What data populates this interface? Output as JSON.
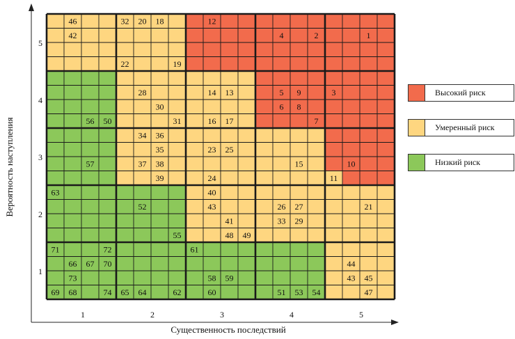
{
  "chart_data": {
    "type": "heatmap",
    "xlabel": "Существенность последствий",
    "ylabel": "Вероятность наступления",
    "x_categories": [
      "1",
      "2",
      "3",
      "4",
      "5"
    ],
    "y_categories": [
      "1",
      "2",
      "3",
      "4",
      "5"
    ],
    "legend": [
      {
        "key": "high",
        "label": "Высокий риск",
        "color": "#f26b4c"
      },
      {
        "key": "moderate",
        "label": "Умеренный риск",
        "color": "#fed680"
      },
      {
        "key": "low",
        "label": "Низкий риск",
        "color": "#8cc85a"
      }
    ],
    "zones": [
      {
        "x": 1,
        "y": 5,
        "level": "moderate"
      },
      {
        "x": 2,
        "y": 5,
        "level": "moderate"
      },
      {
        "x": 3,
        "y": 5,
        "level": "high"
      },
      {
        "x": 4,
        "y": 5,
        "level": "high"
      },
      {
        "x": 5,
        "y": 5,
        "level": "high"
      },
      {
        "x": 1,
        "y": 4,
        "level": "low"
      },
      {
        "x": 2,
        "y": 4,
        "level": "moderate"
      },
      {
        "x": 3,
        "y": 4,
        "level": "moderate"
      },
      {
        "x": 4,
        "y": 4,
        "level": "high"
      },
      {
        "x": 5,
        "y": 4,
        "level": "high"
      },
      {
        "x": 1,
        "y": 3,
        "level": "low"
      },
      {
        "x": 2,
        "y": 3,
        "level": "moderate"
      },
      {
        "x": 3,
        "y": 3,
        "level": "moderate"
      },
      {
        "x": 4,
        "y": 3,
        "level": "moderate"
      },
      {
        "x": 5,
        "y": 3,
        "level": "high"
      },
      {
        "x": 1,
        "y": 2,
        "level": "low"
      },
      {
        "x": 2,
        "y": 2,
        "level": "low"
      },
      {
        "x": 3,
        "y": 2,
        "level": "moderate"
      },
      {
        "x": 4,
        "y": 2,
        "level": "moderate"
      },
      {
        "x": 5,
        "y": 2,
        "level": "moderate"
      },
      {
        "x": 1,
        "y": 1,
        "level": "low"
      },
      {
        "x": 2,
        "y": 1,
        "level": "low"
      },
      {
        "x": 3,
        "y": 1,
        "level": "low"
      },
      {
        "x": 4,
        "y": 1,
        "level": "low"
      },
      {
        "x": 5,
        "y": 1,
        "level": "moderate"
      }
    ],
    "risk_overrides": [
      {
        "x": 5,
        "y": 3,
        "sub_col": 1,
        "sub_row": 4,
        "level": "moderate"
      }
    ],
    "risks": [
      {
        "id": "46",
        "x": 1,
        "y": 5,
        "sub_col": 2,
        "sub_row": 1
      },
      {
        "id": "42",
        "x": 1,
        "y": 5,
        "sub_col": 2,
        "sub_row": 2
      },
      {
        "id": "32",
        "x": 2,
        "y": 5,
        "sub_col": 1,
        "sub_row": 1
      },
      {
        "id": "20",
        "x": 2,
        "y": 5,
        "sub_col": 2,
        "sub_row": 1
      },
      {
        "id": "18",
        "x": 2,
        "y": 5,
        "sub_col": 3,
        "sub_row": 1
      },
      {
        "id": "22",
        "x": 2,
        "y": 5,
        "sub_col": 1,
        "sub_row": 4
      },
      {
        "id": "19",
        "x": 2,
        "y": 5,
        "sub_col": 4,
        "sub_row": 4
      },
      {
        "id": "12",
        "x": 3,
        "y": 5,
        "sub_col": 2,
        "sub_row": 1
      },
      {
        "id": "4",
        "x": 4,
        "y": 5,
        "sub_col": 2,
        "sub_row": 2
      },
      {
        "id": "2",
        "x": 4,
        "y": 5,
        "sub_col": 4,
        "sub_row": 2
      },
      {
        "id": "1",
        "x": 5,
        "y": 5,
        "sub_col": 3,
        "sub_row": 2
      },
      {
        "id": "56",
        "x": 1,
        "y": 4,
        "sub_col": 3,
        "sub_row": 4
      },
      {
        "id": "50",
        "x": 1,
        "y": 4,
        "sub_col": 4,
        "sub_row": 4
      },
      {
        "id": "28",
        "x": 2,
        "y": 4,
        "sub_col": 2,
        "sub_row": 2
      },
      {
        "id": "30",
        "x": 2,
        "y": 4,
        "sub_col": 3,
        "sub_row": 3
      },
      {
        "id": "31",
        "x": 2,
        "y": 4,
        "sub_col": 4,
        "sub_row": 4
      },
      {
        "id": "14",
        "x": 3,
        "y": 4,
        "sub_col": 2,
        "sub_row": 2
      },
      {
        "id": "13",
        "x": 3,
        "y": 4,
        "sub_col": 3,
        "sub_row": 2
      },
      {
        "id": "16",
        "x": 3,
        "y": 4,
        "sub_col": 2,
        "sub_row": 4
      },
      {
        "id": "17",
        "x": 3,
        "y": 4,
        "sub_col": 3,
        "sub_row": 4
      },
      {
        "id": "5",
        "x": 4,
        "y": 4,
        "sub_col": 2,
        "sub_row": 2
      },
      {
        "id": "9",
        "x": 4,
        "y": 4,
        "sub_col": 3,
        "sub_row": 2
      },
      {
        "id": "6",
        "x": 4,
        "y": 4,
        "sub_col": 2,
        "sub_row": 3
      },
      {
        "id": "8",
        "x": 4,
        "y": 4,
        "sub_col": 3,
        "sub_row": 3
      },
      {
        "id": "7",
        "x": 4,
        "y": 4,
        "sub_col": 4,
        "sub_row": 4
      },
      {
        "id": "3",
        "x": 5,
        "y": 4,
        "sub_col": 1,
        "sub_row": 2
      },
      {
        "id": "57",
        "x": 1,
        "y": 3,
        "sub_col": 3,
        "sub_row": 3
      },
      {
        "id": "34",
        "x": 2,
        "y": 3,
        "sub_col": 2,
        "sub_row": 1
      },
      {
        "id": "36",
        "x": 2,
        "y": 3,
        "sub_col": 3,
        "sub_row": 1
      },
      {
        "id": "35",
        "x": 2,
        "y": 3,
        "sub_col": 3,
        "sub_row": 2
      },
      {
        "id": "37",
        "x": 2,
        "y": 3,
        "sub_col": 2,
        "sub_row": 3
      },
      {
        "id": "38",
        "x": 2,
        "y": 3,
        "sub_col": 3,
        "sub_row": 3
      },
      {
        "id": "39",
        "x": 2,
        "y": 3,
        "sub_col": 3,
        "sub_row": 4
      },
      {
        "id": "23",
        "x": 3,
        "y": 3,
        "sub_col": 2,
        "sub_row": 2
      },
      {
        "id": "25",
        "x": 3,
        "y": 3,
        "sub_col": 3,
        "sub_row": 2
      },
      {
        "id": "24",
        "x": 3,
        "y": 3,
        "sub_col": 2,
        "sub_row": 4
      },
      {
        "id": "15",
        "x": 4,
        "y": 3,
        "sub_col": 3,
        "sub_row": 3
      },
      {
        "id": "10",
        "x": 5,
        "y": 3,
        "sub_col": 2,
        "sub_row": 3
      },
      {
        "id": "11",
        "x": 5,
        "y": 3,
        "sub_col": 1,
        "sub_row": 4
      },
      {
        "id": "63",
        "x": 1,
        "y": 2,
        "sub_col": 1,
        "sub_row": 1
      },
      {
        "id": "52",
        "x": 2,
        "y": 2,
        "sub_col": 2,
        "sub_row": 2
      },
      {
        "id": "55",
        "x": 2,
        "y": 2,
        "sub_col": 4,
        "sub_row": 4
      },
      {
        "id": "40",
        "x": 3,
        "y": 2,
        "sub_col": 2,
        "sub_row": 1
      },
      {
        "id": "43",
        "x": 3,
        "y": 2,
        "sub_col": 2,
        "sub_row": 2
      },
      {
        "id": "41",
        "x": 3,
        "y": 2,
        "sub_col": 3,
        "sub_row": 3
      },
      {
        "id": "48",
        "x": 3,
        "y": 2,
        "sub_col": 3,
        "sub_row": 4
      },
      {
        "id": "49",
        "x": 3,
        "y": 2,
        "sub_col": 4,
        "sub_row": 4
      },
      {
        "id": "26",
        "x": 4,
        "y": 2,
        "sub_col": 2,
        "sub_row": 2
      },
      {
        "id": "27",
        "x": 4,
        "y": 2,
        "sub_col": 3,
        "sub_row": 2
      },
      {
        "id": "33",
        "x": 4,
        "y": 2,
        "sub_col": 2,
        "sub_row": 3
      },
      {
        "id": "29",
        "x": 4,
        "y": 2,
        "sub_col": 3,
        "sub_row": 3
      },
      {
        "id": "21",
        "x": 5,
        "y": 2,
        "sub_col": 3,
        "sub_row": 2
      },
      {
        "id": "71",
        "x": 1,
        "y": 1,
        "sub_col": 1,
        "sub_row": 1
      },
      {
        "id": "72",
        "x": 1,
        "y": 1,
        "sub_col": 4,
        "sub_row": 1
      },
      {
        "id": "66",
        "x": 1,
        "y": 1,
        "sub_col": 2,
        "sub_row": 2
      },
      {
        "id": "67",
        "x": 1,
        "y": 1,
        "sub_col": 3,
        "sub_row": 2
      },
      {
        "id": "70",
        "x": 1,
        "y": 1,
        "sub_col": 4,
        "sub_row": 2
      },
      {
        "id": "73",
        "x": 1,
        "y": 1,
        "sub_col": 2,
        "sub_row": 3
      },
      {
        "id": "69",
        "x": 1,
        "y": 1,
        "sub_col": 1,
        "sub_row": 4
      },
      {
        "id": "68",
        "x": 1,
        "y": 1,
        "sub_col": 2,
        "sub_row": 4
      },
      {
        "id": "74",
        "x": 1,
        "y": 1,
        "sub_col": 4,
        "sub_row": 4
      },
      {
        "id": "65",
        "x": 2,
        "y": 1,
        "sub_col": 1,
        "sub_row": 4
      },
      {
        "id": "64",
        "x": 2,
        "y": 1,
        "sub_col": 2,
        "sub_row": 4
      },
      {
        "id": "62",
        "x": 2,
        "y": 1,
        "sub_col": 4,
        "sub_row": 4
      },
      {
        "id": "61",
        "x": 3,
        "y": 1,
        "sub_col": 1,
        "sub_row": 1
      },
      {
        "id": "58",
        "x": 3,
        "y": 1,
        "sub_col": 2,
        "sub_row": 3
      },
      {
        "id": "59",
        "x": 3,
        "y": 1,
        "sub_col": 3,
        "sub_row": 3
      },
      {
        "id": "60",
        "x": 3,
        "y": 1,
        "sub_col": 2,
        "sub_row": 4
      },
      {
        "id": "51",
        "x": 4,
        "y": 1,
        "sub_col": 2,
        "sub_row": 4
      },
      {
        "id": "53",
        "x": 4,
        "y": 1,
        "sub_col": 3,
        "sub_row": 4
      },
      {
        "id": "54",
        "x": 4,
        "y": 1,
        "sub_col": 4,
        "sub_row": 4
      },
      {
        "id": "44",
        "x": 5,
        "y": 1,
        "sub_col": 2,
        "sub_row": 2
      },
      {
        "id": "43",
        "x": 5,
        "y": 1,
        "sub_col": 2,
        "sub_row": 3
      },
      {
        "id": "45",
        "x": 5,
        "y": 1,
        "sub_col": 3,
        "sub_row": 3
      },
      {
        "id": "47",
        "x": 5,
        "y": 1,
        "sub_col": 3,
        "sub_row": 4
      }
    ]
  }
}
